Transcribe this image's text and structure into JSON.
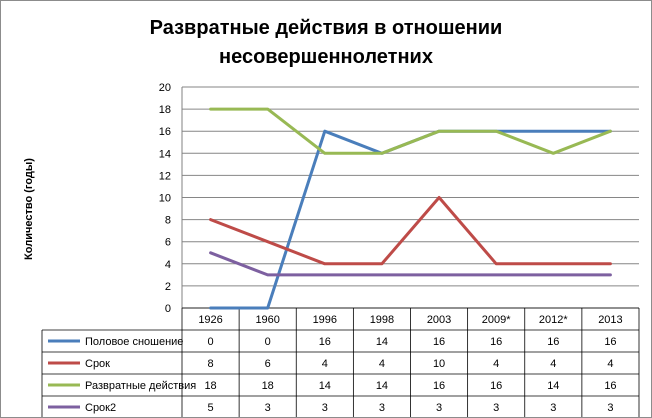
{
  "chart_data": {
    "type": "line",
    "title_lines": [
      "Развратные действия в отношении",
      "несовершеннолетних"
    ],
    "ylabel": "Количество  (годы)",
    "xlabel": "",
    "categories": [
      "1926",
      "1960",
      "1996",
      "1998",
      "2003",
      "2009*",
      "2012*",
      "2013"
    ],
    "ylim": [
      0,
      20
    ],
    "yticks": [
      0,
      2,
      4,
      6,
      8,
      10,
      12,
      14,
      16,
      18,
      20
    ],
    "grid": true,
    "legend": "data-table-left",
    "series": [
      {
        "name": "Половое сношение",
        "color": "#4a7ebb",
        "values": [
          0,
          0,
          16,
          14,
          16,
          16,
          16,
          16
        ]
      },
      {
        "name": "Срок",
        "color": "#be4b48",
        "values": [
          8,
          6,
          4,
          4,
          10,
          4,
          4,
          4
        ]
      },
      {
        "name": "Развратные действия",
        "color": "#98b954",
        "values": [
          18,
          18,
          14,
          14,
          16,
          16,
          14,
          16
        ]
      },
      {
        "name": "Срок2",
        "color": "#7d60a0",
        "values": [
          5,
          3,
          3,
          3,
          3,
          3,
          3,
          3
        ]
      }
    ]
  }
}
